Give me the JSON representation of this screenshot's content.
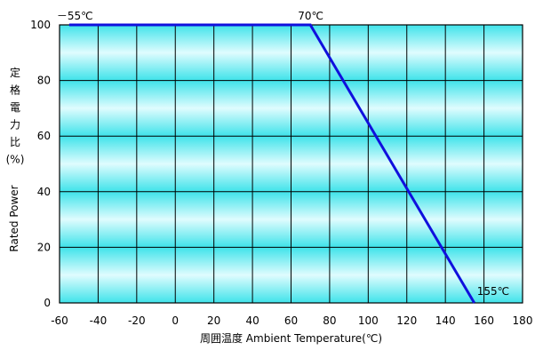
{
  "chart_data": {
    "type": "line",
    "xlabel": "周囲温度  Ambient Temperature(℃)",
    "ylabel_jp": [
      "定",
      "格",
      "電",
      "力",
      "比",
      "(%)"
    ],
    "ylabel_en": "Rated Power",
    "xlim": [
      -60,
      180
    ],
    "ylim": [
      0,
      100
    ],
    "xticks": [
      "-60",
      "-40",
      "-20",
      "0",
      "20",
      "40",
      "60",
      "80",
      "100",
      "120",
      "140",
      "160",
      "180"
    ],
    "yticks": [
      "0",
      "20",
      "40",
      "60",
      "80",
      "100"
    ],
    "grid": true,
    "background": "cyan-gradient",
    "series": [
      {
        "color": "#1010dd",
        "x": [
          -55,
          70,
          155
        ],
        "y": [
          100,
          100,
          0
        ]
      }
    ],
    "annotations": [
      {
        "text": "－55℃",
        "x": -55,
        "y": 100
      },
      {
        "text": "70℃",
        "x": 70,
        "y": 100
      },
      {
        "text": "155℃",
        "x": 155,
        "y": 0
      }
    ]
  }
}
